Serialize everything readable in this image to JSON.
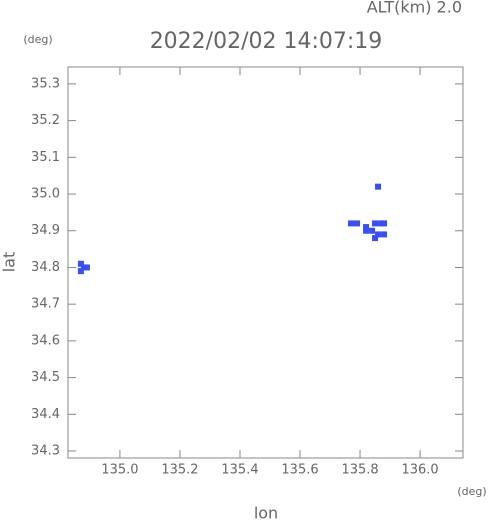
{
  "chart_data": {
    "type": "scatter",
    "annotation": "ALT(km)  2.0",
    "title": "2022/02/02 14:07:19",
    "y_unit": "(deg)",
    "x_unit": "(deg)",
    "xlabel": "lon",
    "ylabel": "lat",
    "color": "#3a4ff0",
    "xlim": [
      134.827,
      136.143
    ],
    "ylim": [
      34.281,
      35.346
    ],
    "xticks": [
      {
        "value": 135,
        "label": "135.0"
      },
      135.2,
      135.4,
      135.6,
      135.8,
      {
        "value": 136,
        "label": "136.0"
      }
    ],
    "yticks": [
      34.3,
      34.4,
      34.5,
      34.6,
      34.7,
      34.8,
      34.9,
      {
        "value": 35,
        "label": "35.0"
      },
      35.1,
      35.2,
      35.3
    ],
    "x": [
      134.87,
      134.88,
      134.87,
      134.89,
      135.77,
      135.79,
      135.82,
      135.82,
      135.84,
      135.85,
      135.87,
      135.88,
      135.86,
      135.88,
      135.85,
      135.86
    ],
    "values": [
      34.81,
      34.8,
      34.79,
      34.8,
      34.92,
      34.92,
      34.91,
      34.9,
      34.9,
      34.92,
      34.92,
      34.92,
      34.89,
      34.89,
      34.88,
      35.02
    ]
  }
}
